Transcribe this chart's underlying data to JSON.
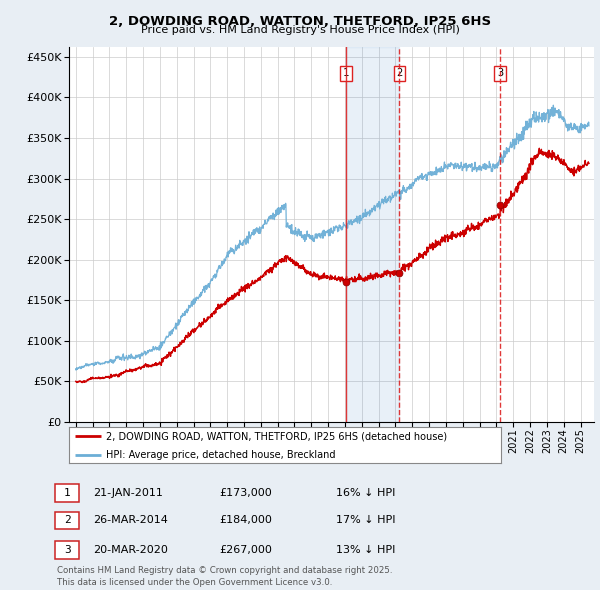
{
  "title": "2, DOWDING ROAD, WATTON, THETFORD, IP25 6HS",
  "subtitle": "Price paid vs. HM Land Registry's House Price Index (HPI)",
  "ytick_values": [
    0,
    50000,
    100000,
    150000,
    200000,
    250000,
    300000,
    350000,
    400000,
    450000
  ],
  "ylim": [
    0,
    462000
  ],
  "xlim_start": 1994.6,
  "xlim_end": 2025.8,
  "sale_dates": [
    2011.05,
    2014.23,
    2020.22
  ],
  "sale_prices": [
    173000,
    184000,
    267000
  ],
  "sale_labels": [
    "1",
    "2",
    "3"
  ],
  "vline_color": "#dd2222",
  "hpi_line_color": "#6baed6",
  "price_line_color": "#cc0000",
  "background_color": "#e8eef4",
  "plot_bg_color": "#ffffff",
  "footer_text": "Contains HM Land Registry data © Crown copyright and database right 2025.\nThis data is licensed under the Open Government Licence v3.0.",
  "legend1_label": "2, DOWDING ROAD, WATTON, THETFORD, IP25 6HS (detached house)",
  "legend2_label": "HPI: Average price, detached house, Breckland",
  "table_data": [
    [
      "1",
      "21-JAN-2011",
      "£173,000",
      "16% ↓ HPI"
    ],
    [
      "2",
      "26-MAR-2014",
      "£184,000",
      "17% ↓ HPI"
    ],
    [
      "3",
      "20-MAR-2020",
      "£267,000",
      "13% ↓ HPI"
    ]
  ]
}
